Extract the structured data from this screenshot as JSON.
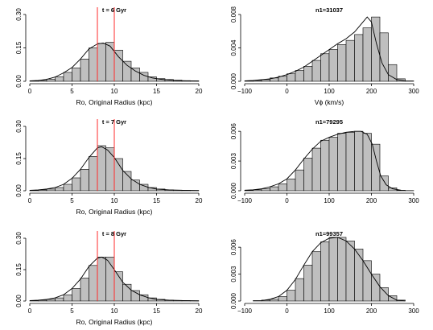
{
  "chart_data": [
    {
      "type": "histogram",
      "title": "t = 6 Gyr",
      "xlabel": "Ro, Original Radius (kpc)",
      "xlim": [
        0,
        20
      ],
      "ylim": [
        0,
        0.3
      ],
      "xticks": [
        "0",
        "5",
        "10",
        "15",
        "20"
      ],
      "yticks": [
        "0.00",
        "0.15",
        "0.30"
      ],
      "bin_edges": [
        0,
        1,
        2,
        3,
        4,
        5,
        6,
        7,
        8,
        9,
        10,
        11,
        12,
        13,
        14,
        15,
        16,
        17,
        18,
        19,
        20
      ],
      "values": [
        0.002,
        0.004,
        0.01,
        0.02,
        0.04,
        0.06,
        0.1,
        0.15,
        0.17,
        0.175,
        0.14,
        0.09,
        0.06,
        0.04,
        0.02,
        0.012,
        0.008,
        0.005,
        0.003,
        0.002
      ],
      "curve": [
        [
          0,
          0.002
        ],
        [
          1,
          0.004
        ],
        [
          2,
          0.009
        ],
        [
          3,
          0.019
        ],
        [
          4,
          0.038
        ],
        [
          5,
          0.062
        ],
        [
          6,
          0.1
        ],
        [
          7,
          0.145
        ],
        [
          8,
          0.168
        ],
        [
          8.7,
          0.172
        ],
        [
          9.5,
          0.158
        ],
        [
          10.5,
          0.11
        ],
        [
          11.5,
          0.072
        ],
        [
          12.5,
          0.046
        ],
        [
          13.5,
          0.027
        ],
        [
          14.5,
          0.015
        ],
        [
          15.5,
          0.009
        ],
        [
          17,
          0.004
        ],
        [
          18.5,
          0.002
        ],
        [
          20,
          0.001
        ]
      ],
      "vlines": [
        8,
        10
      ]
    },
    {
      "type": "histogram",
      "title": "n1=31037",
      "xlabel": "Vϕ (km/s)",
      "xlim": [
        -100,
        300
      ],
      "ylim": [
        0,
        0.008
      ],
      "xticks": [
        "−100",
        "0",
        "100",
        "200",
        "300"
      ],
      "yticks": [
        "0.000",
        "0.004",
        "0.008"
      ],
      "bin_edges": [
        -100,
        -80,
        -60,
        -40,
        -20,
        0,
        20,
        40,
        60,
        80,
        100,
        120,
        140,
        160,
        180,
        200,
        220,
        240,
        260,
        280,
        300
      ],
      "values": [
        5e-05,
        0.0001,
        0.0002,
        0.0004,
        0.0006,
        0.0009,
        0.0013,
        0.0018,
        0.0025,
        0.0033,
        0.0038,
        0.0044,
        0.0049,
        0.0056,
        0.0064,
        0.0077,
        0.0058,
        0.002,
        0.0003,
        5e-05
      ],
      "curve": [
        [
          -100,
          5e-05
        ],
        [
          -80,
          0.0001
        ],
        [
          -60,
          0.0002
        ],
        [
          -40,
          0.0003
        ],
        [
          -20,
          0.0005
        ],
        [
          0,
          0.0008
        ],
        [
          20,
          0.0012
        ],
        [
          40,
          0.0017
        ],
        [
          60,
          0.0024
        ],
        [
          80,
          0.0031
        ],
        [
          100,
          0.0038
        ],
        [
          120,
          0.0045
        ],
        [
          140,
          0.0051
        ],
        [
          160,
          0.0059
        ],
        [
          175,
          0.0068
        ],
        [
          190,
          0.0077
        ],
        [
          200,
          0.0071
        ],
        [
          212,
          0.0045
        ],
        [
          225,
          0.0022
        ],
        [
          240,
          0.0008
        ],
        [
          260,
          0.0002
        ],
        [
          280,
          5e-05
        ]
      ],
      "vlines": []
    },
    {
      "type": "histogram",
      "title": "t = 7 Gyr",
      "xlabel": "Ro, Original Radius (kpc)",
      "xlim": [
        0,
        20
      ],
      "ylim": [
        0,
        0.3
      ],
      "xticks": [
        "0",
        "5",
        "10",
        "15",
        "20"
      ],
      "yticks": [
        "0.00",
        "0.15",
        "0.30"
      ],
      "bin_edges": [
        0,
        1,
        2,
        3,
        4,
        5,
        6,
        7,
        8,
        9,
        10,
        11,
        12,
        13,
        14,
        15,
        16,
        17,
        18,
        19,
        20
      ],
      "values": [
        0.002,
        0.004,
        0.008,
        0.015,
        0.03,
        0.06,
        0.1,
        0.16,
        0.21,
        0.2,
        0.15,
        0.09,
        0.05,
        0.03,
        0.015,
        0.008,
        0.004,
        0.003,
        0.002,
        0.001
      ],
      "curve": [
        [
          0,
          0.002
        ],
        [
          1,
          0.004
        ],
        [
          2,
          0.008
        ],
        [
          3,
          0.015
        ],
        [
          4,
          0.03
        ],
        [
          5,
          0.058
        ],
        [
          6,
          0.1
        ],
        [
          7,
          0.155
        ],
        [
          8,
          0.2
        ],
        [
          8.5,
          0.205
        ],
        [
          9.2,
          0.19
        ],
        [
          10,
          0.155
        ],
        [
          11,
          0.095
        ],
        [
          12,
          0.055
        ],
        [
          13,
          0.03
        ],
        [
          14,
          0.016
        ],
        [
          15,
          0.008
        ],
        [
          16.5,
          0.004
        ],
        [
          18,
          0.002
        ],
        [
          20,
          0.001
        ]
      ],
      "vlines": [
        8,
        10
      ]
    },
    {
      "type": "histogram",
      "title": "n1=79295",
      "xlabel": "",
      "xlim": [
        -100,
        300
      ],
      "ylim": [
        0,
        0.0065
      ],
      "xticks": [
        "−100",
        "0",
        "100",
        "200",
        "300"
      ],
      "yticks": [
        "0.000",
        "0.003",
        "0.006"
      ],
      "bin_edges": [
        -100,
        -80,
        -60,
        -40,
        -20,
        0,
        20,
        40,
        60,
        80,
        100,
        120,
        140,
        160,
        180,
        200,
        220,
        240,
        260,
        280,
        300
      ],
      "values": [
        5e-05,
        0.0001,
        0.0002,
        0.0004,
        0.0007,
        0.0012,
        0.0021,
        0.0033,
        0.0043,
        0.0051,
        0.0054,
        0.0058,
        0.0059,
        0.006,
        0.0058,
        0.0047,
        0.0015,
        0.0003,
        5e-05,
        2e-05
      ],
      "curve": [
        [
          -100,
          5e-05
        ],
        [
          -80,
          0.0001
        ],
        [
          -60,
          0.0002
        ],
        [
          -40,
          0.0004
        ],
        [
          -20,
          0.0007
        ],
        [
          0,
          0.0012
        ],
        [
          20,
          0.0021
        ],
        [
          40,
          0.0032
        ],
        [
          60,
          0.0042
        ],
        [
          80,
          0.005
        ],
        [
          100,
          0.0054
        ],
        [
          120,
          0.0057
        ],
        [
          140,
          0.0059
        ],
        [
          160,
          0.006
        ],
        [
          175,
          0.006
        ],
        [
          190,
          0.0057
        ],
        [
          202,
          0.0047
        ],
        [
          212,
          0.003
        ],
        [
          222,
          0.0015
        ],
        [
          235,
          0.0006
        ],
        [
          250,
          0.0002
        ],
        [
          270,
          5e-05
        ]
      ],
      "vlines": []
    },
    {
      "type": "histogram",
      "title": "t = 8 Gyr",
      "xlabel": "Ro, Original Radius (kpc)",
      "xlim": [
        0,
        20
      ],
      "ylim": [
        0,
        0.3
      ],
      "xticks": [
        "0",
        "5",
        "10",
        "15",
        "20"
      ],
      "yticks": [
        "0.00",
        "0.15",
        "0.30"
      ],
      "bin_edges": [
        0,
        1,
        2,
        3,
        4,
        5,
        6,
        7,
        8,
        9,
        10,
        11,
        12,
        13,
        14,
        15,
        16,
        17,
        18,
        19,
        20
      ],
      "values": [
        0.002,
        0.004,
        0.008,
        0.015,
        0.03,
        0.06,
        0.11,
        0.17,
        0.21,
        0.21,
        0.14,
        0.08,
        0.05,
        0.03,
        0.015,
        0.008,
        0.004,
        0.003,
        0.002,
        0.001
      ],
      "curve": [
        [
          0,
          0.002
        ],
        [
          1,
          0.004
        ],
        [
          2,
          0.008
        ],
        [
          3,
          0.015
        ],
        [
          4,
          0.03
        ],
        [
          5,
          0.06
        ],
        [
          6,
          0.105
        ],
        [
          7,
          0.165
        ],
        [
          8,
          0.205
        ],
        [
          8.5,
          0.21
        ],
        [
          9.2,
          0.195
        ],
        [
          10,
          0.15
        ],
        [
          11,
          0.09
        ],
        [
          12,
          0.052
        ],
        [
          13,
          0.03
        ],
        [
          14,
          0.016
        ],
        [
          15,
          0.008
        ],
        [
          16.5,
          0.004
        ],
        [
          18,
          0.002
        ],
        [
          20,
          0.001
        ]
      ],
      "vlines": [
        8,
        10
      ]
    },
    {
      "type": "histogram",
      "title": "n1=99357",
      "xlabel": "",
      "xlim": [
        -100,
        300
      ],
      "ylim": [
        0,
        0.007
      ],
      "xticks": [
        "−100",
        "0",
        "100",
        "200",
        "300"
      ],
      "yticks": [
        "0.000",
        "0.003",
        "0.006"
      ],
      "bin_edges": [
        -100,
        -80,
        -60,
        -40,
        -20,
        0,
        20,
        40,
        60,
        80,
        100,
        120,
        140,
        160,
        180,
        200,
        220,
        240,
        260,
        280,
        300
      ],
      "values": [
        0,
        5e-05,
        0.0001,
        0.0002,
        0.0005,
        0.0012,
        0.0025,
        0.004,
        0.0055,
        0.0066,
        0.0071,
        0.0071,
        0.0067,
        0.0058,
        0.0045,
        0.003,
        0.0015,
        0.0006,
        0.0001,
        0
      ],
      "curve": [
        [
          -60,
          5e-05
        ],
        [
          -40,
          0.0002
        ],
        [
          -20,
          0.0005
        ],
        [
          0,
          0.0012
        ],
        [
          20,
          0.0024
        ],
        [
          40,
          0.004
        ],
        [
          60,
          0.0055
        ],
        [
          80,
          0.0065
        ],
        [
          100,
          0.007
        ],
        [
          120,
          0.0071
        ],
        [
          140,
          0.0067
        ],
        [
          160,
          0.0058
        ],
        [
          180,
          0.0045
        ],
        [
          200,
          0.003
        ],
        [
          220,
          0.0016
        ],
        [
          240,
          0.0006
        ],
        [
          260,
          0.0001
        ],
        [
          280,
          2e-05
        ]
      ],
      "vlines": []
    }
  ]
}
